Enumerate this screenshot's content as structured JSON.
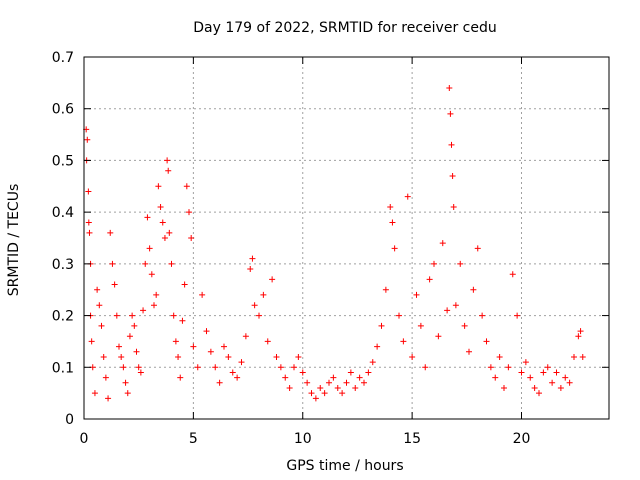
{
  "chart_data": {
    "type": "scatter",
    "title": "Day 179 of 2022, SRMTID for receiver cedu",
    "xlabel": "GPS time / hours",
    "ylabel": "SRMTID / TECUs",
    "xlim": [
      0,
      24
    ],
    "ylim": [
      0,
      0.7
    ],
    "x_ticks": [
      0,
      5,
      10,
      15,
      20
    ],
    "y_ticks": [
      0,
      0.1,
      0.2,
      0.3,
      0.4,
      0.5,
      0.6,
      0.7
    ],
    "x_tick_labels": [
      "0",
      "5",
      "10",
      "15",
      "20"
    ],
    "y_tick_labels": [
      "0",
      "0.1",
      "0.2",
      "0.3",
      "0.4",
      "0.5",
      "0.6",
      "0.7"
    ],
    "grid": true,
    "marker": "+",
    "color": "#ff0000",
    "series": [
      {
        "name": "SRMTID",
        "points": [
          [
            0.1,
            0.56
          ],
          [
            0.15,
            0.54
          ],
          [
            0.12,
            0.5
          ],
          [
            0.2,
            0.44
          ],
          [
            0.22,
            0.38
          ],
          [
            0.25,
            0.36
          ],
          [
            0.3,
            0.3
          ],
          [
            0.3,
            0.2
          ],
          [
            0.35,
            0.15
          ],
          [
            0.4,
            0.1
          ],
          [
            0.5,
            0.05
          ],
          [
            0.6,
            0.25
          ],
          [
            0.7,
            0.22
          ],
          [
            0.8,
            0.18
          ],
          [
            0.9,
            0.12
          ],
          [
            1.0,
            0.08
          ],
          [
            1.1,
            0.04
          ],
          [
            1.2,
            0.36
          ],
          [
            1.3,
            0.3
          ],
          [
            1.4,
            0.26
          ],
          [
            1.5,
            0.2
          ],
          [
            1.6,
            0.14
          ],
          [
            1.7,
            0.12
          ],
          [
            1.8,
            0.1
          ],
          [
            1.9,
            0.07
          ],
          [
            2.0,
            0.05
          ],
          [
            2.1,
            0.16
          ],
          [
            2.2,
            0.2
          ],
          [
            2.3,
            0.18
          ],
          [
            2.4,
            0.13
          ],
          [
            2.5,
            0.1
          ],
          [
            2.6,
            0.09
          ],
          [
            2.7,
            0.21
          ],
          [
            2.8,
            0.3
          ],
          [
            2.9,
            0.39
          ],
          [
            3.0,
            0.33
          ],
          [
            3.1,
            0.28
          ],
          [
            3.2,
            0.22
          ],
          [
            3.3,
            0.24
          ],
          [
            3.4,
            0.45
          ],
          [
            3.5,
            0.41
          ],
          [
            3.6,
            0.38
          ],
          [
            3.7,
            0.35
          ],
          [
            3.8,
            0.5
          ],
          [
            3.85,
            0.48
          ],
          [
            3.9,
            0.36
          ],
          [
            4.0,
            0.3
          ],
          [
            4.1,
            0.2
          ],
          [
            4.2,
            0.15
          ],
          [
            4.3,
            0.12
          ],
          [
            4.4,
            0.08
          ],
          [
            4.5,
            0.19
          ],
          [
            4.6,
            0.26
          ],
          [
            4.7,
            0.45
          ],
          [
            4.8,
            0.4
          ],
          [
            4.9,
            0.35
          ],
          [
            5.0,
            0.14
          ],
          [
            5.2,
            0.1
          ],
          [
            5.4,
            0.24
          ],
          [
            5.6,
            0.17
          ],
          [
            5.8,
            0.13
          ],
          [
            6.0,
            0.1
          ],
          [
            6.2,
            0.07
          ],
          [
            6.4,
            0.14
          ],
          [
            6.6,
            0.12
          ],
          [
            6.8,
            0.09
          ],
          [
            7.0,
            0.08
          ],
          [
            7.2,
            0.11
          ],
          [
            7.4,
            0.16
          ],
          [
            7.6,
            0.29
          ],
          [
            7.7,
            0.31
          ],
          [
            7.8,
            0.22
          ],
          [
            8.0,
            0.2
          ],
          [
            8.2,
            0.24
          ],
          [
            8.4,
            0.15
          ],
          [
            8.6,
            0.27
          ],
          [
            8.8,
            0.12
          ],
          [
            9.0,
            0.1
          ],
          [
            9.2,
            0.08
          ],
          [
            9.4,
            0.06
          ],
          [
            9.6,
            0.1
          ],
          [
            9.8,
            0.12
          ],
          [
            10.0,
            0.09
          ],
          [
            10.2,
            0.07
          ],
          [
            10.4,
            0.05
          ],
          [
            10.6,
            0.04
          ],
          [
            10.8,
            0.06
          ],
          [
            11.0,
            0.05
          ],
          [
            11.2,
            0.07
          ],
          [
            11.4,
            0.08
          ],
          [
            11.6,
            0.06
          ],
          [
            11.8,
            0.05
          ],
          [
            12.0,
            0.07
          ],
          [
            12.2,
            0.09
          ],
          [
            12.4,
            0.06
          ],
          [
            12.6,
            0.08
          ],
          [
            12.8,
            0.07
          ],
          [
            13.0,
            0.09
          ],
          [
            13.2,
            0.11
          ],
          [
            13.4,
            0.14
          ],
          [
            13.6,
            0.18
          ],
          [
            13.8,
            0.25
          ],
          [
            14.0,
            0.41
          ],
          [
            14.1,
            0.38
          ],
          [
            14.2,
            0.33
          ],
          [
            14.4,
            0.2
          ],
          [
            14.6,
            0.15
          ],
          [
            14.8,
            0.43
          ],
          [
            15.0,
            0.12
          ],
          [
            15.2,
            0.24
          ],
          [
            15.4,
            0.18
          ],
          [
            15.6,
            0.1
          ],
          [
            15.8,
            0.27
          ],
          [
            16.0,
            0.3
          ],
          [
            16.2,
            0.16
          ],
          [
            16.4,
            0.34
          ],
          [
            16.6,
            0.21
          ],
          [
            16.7,
            0.64
          ],
          [
            16.75,
            0.59
          ],
          [
            16.8,
            0.53
          ],
          [
            16.85,
            0.47
          ],
          [
            16.9,
            0.41
          ],
          [
            17.0,
            0.22
          ],
          [
            17.2,
            0.3
          ],
          [
            17.4,
            0.18
          ],
          [
            17.6,
            0.13
          ],
          [
            17.8,
            0.25
          ],
          [
            18.0,
            0.33
          ],
          [
            18.2,
            0.2
          ],
          [
            18.4,
            0.15
          ],
          [
            18.6,
            0.1
          ],
          [
            18.8,
            0.08
          ],
          [
            19.0,
            0.12
          ],
          [
            19.2,
            0.06
          ],
          [
            19.4,
            0.1
          ],
          [
            19.6,
            0.28
          ],
          [
            19.8,
            0.2
          ],
          [
            20.0,
            0.09
          ],
          [
            20.2,
            0.11
          ],
          [
            20.4,
            0.08
          ],
          [
            20.6,
            0.06
          ],
          [
            20.8,
            0.05
          ],
          [
            21.0,
            0.09
          ],
          [
            21.2,
            0.1
          ],
          [
            21.4,
            0.07
          ],
          [
            21.6,
            0.09
          ],
          [
            21.8,
            0.06
          ],
          [
            22.0,
            0.08
          ],
          [
            22.2,
            0.07
          ],
          [
            22.4,
            0.12
          ],
          [
            22.6,
            0.16
          ],
          [
            22.7,
            0.17
          ],
          [
            22.8,
            0.12
          ]
        ]
      }
    ]
  }
}
